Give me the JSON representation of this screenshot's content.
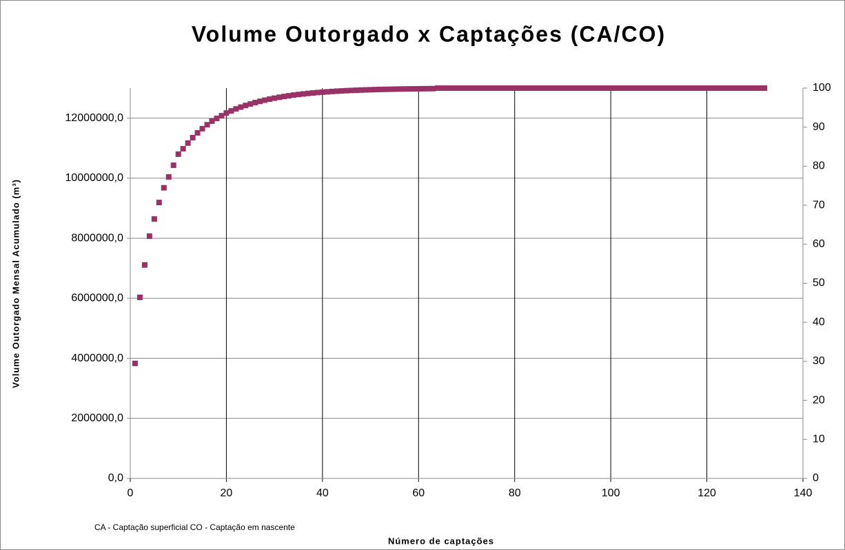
{
  "chart_data": {
    "type": "scatter",
    "title": "Volume Outorgado x Captações (CA/CO)",
    "xlabel": "Número de captações",
    "ylabel": "Volume Outorgado Mensal Acumulado (m³)",
    "annotation": "CA - Captação superficial  CO - Captação em nascente",
    "grid": true,
    "color": "#993366",
    "xlim": [
      0,
      140
    ],
    "xticks": [
      0,
      20,
      40,
      60,
      80,
      100,
      120,
      140
    ],
    "ylim": [
      0,
      13000000
    ],
    "yticks": [
      {
        "value": 0,
        "label": "0,0"
      },
      {
        "value": 2000000,
        "label": "2000000,0"
      },
      {
        "value": 4000000,
        "label": "4000000,0"
      },
      {
        "value": 6000000,
        "label": "6000000,0"
      },
      {
        "value": 8000000,
        "label": "8000000,0"
      },
      {
        "value": 10000000,
        "label": "10000000,0"
      },
      {
        "value": 12000000,
        "label": "12000000,0"
      }
    ],
    "y2lim": [
      0,
      100
    ],
    "y2ticks": [
      0,
      10,
      20,
      30,
      40,
      50,
      60,
      70,
      80,
      90,
      100
    ],
    "x": [
      1,
      2,
      3,
      4,
      5,
      6,
      7,
      8,
      9,
      10,
      11,
      12,
      13,
      14,
      15,
      16,
      17,
      18,
      19,
      20,
      21,
      22,
      23,
      24,
      25,
      26,
      27,
      28,
      29,
      30,
      31,
      32,
      33,
      34,
      35,
      36,
      37,
      38,
      39,
      40,
      41,
      42,
      43,
      44,
      45,
      46,
      47,
      48,
      49,
      50,
      51,
      52,
      53,
      54,
      55,
      56,
      57,
      58,
      59,
      60,
      61,
      62,
      63,
      64,
      65,
      66,
      67,
      68,
      69,
      70,
      71,
      72,
      73,
      74,
      75,
      76,
      77,
      78,
      79,
      80,
      81,
      82,
      83,
      84,
      85,
      86,
      87,
      88,
      89,
      90,
      91,
      92,
      93,
      94,
      95,
      96,
      97,
      98,
      99,
      100,
      101,
      102,
      103,
      104,
      105,
      106,
      107,
      108,
      109,
      110,
      111,
      112,
      113,
      114,
      115,
      116,
      117,
      118,
      119,
      120,
      121,
      122,
      123,
      124,
      125,
      126,
      127,
      128,
      129,
      130,
      131,
      132
    ],
    "values": [
      3830000,
      6030000,
      7110000,
      8070000,
      8640000,
      9190000,
      9680000,
      10040000,
      10430000,
      10800000,
      10980000,
      11170000,
      11350000,
      11510000,
      11650000,
      11780000,
      11900000,
      11990000,
      12080000,
      12170000,
      12242000,
      12308000,
      12368000,
      12423000,
      12473000,
      12519000,
      12561000,
      12599000,
      12634000,
      12665000,
      12695000,
      12721000,
      12745000,
      12768000,
      12788000,
      12806000,
      12823000,
      12839000,
      12853000,
      12865000,
      12877000,
      12888000,
      12898000,
      12906000,
      12915000,
      12922000,
      12929000,
      12935000,
      12941000,
      12946000,
      12951000,
      12955000,
      12959000,
      12962000,
      12966000,
      12969000,
      12971000,
      12974000,
      12976000,
      12978000,
      12980000,
      12982000,
      12983000,
      13000000,
      13000000,
      13000000,
      13000000,
      13000000,
      13000000,
      13000000,
      13000000,
      13000000,
      13000000,
      13000000,
      13000000,
      13000000,
      13000000,
      13000000,
      13000000,
      13000000,
      13000000,
      13000000,
      13000000,
      13000000,
      13000000,
      13000000,
      13000000,
      13000000,
      13000000,
      13000000,
      13000000,
      13000000,
      13000000,
      13000000,
      13000000,
      13000000,
      13000000,
      13000000,
      13000000,
      13000000,
      13000000,
      13000000,
      13000000,
      13000000,
      13000000,
      13000000,
      13000000,
      13000000,
      13000000,
      13000000,
      13000000,
      13000000,
      13000000,
      13000000,
      13000000,
      13000000,
      13000000,
      13000000,
      13000000,
      13000000,
      13000000,
      13000000,
      13000000,
      13000000,
      13000000,
      13000000,
      13000000,
      13000000,
      13000000,
      13000000,
      13000000,
      13000000
    ]
  }
}
